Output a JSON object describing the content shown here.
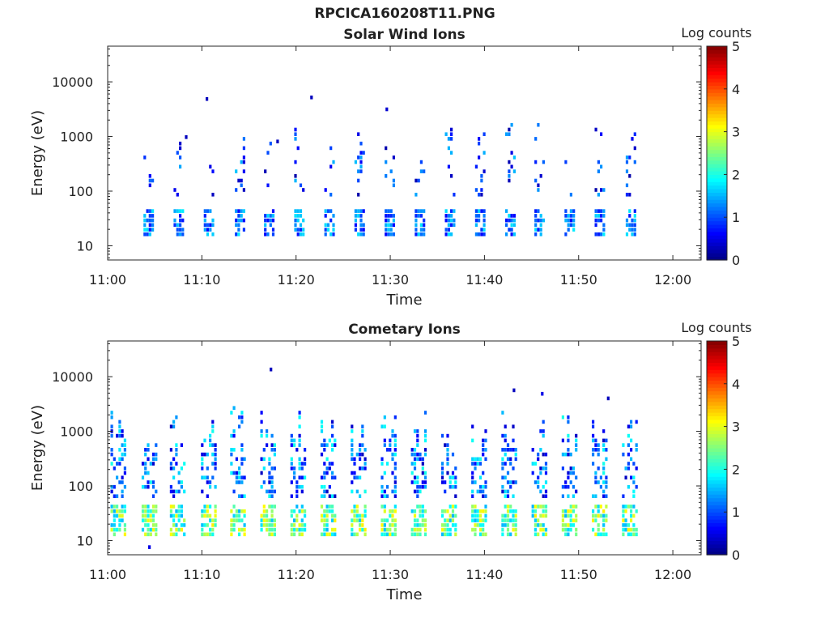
{
  "figure": {
    "title": "RPCICA160208T11.PNG"
  },
  "chart_data": [
    {
      "type": "heatmap",
      "title": "Solar Wind Ions",
      "xlabel": "Time",
      "ylabel": "Energy (eV)",
      "x_ticks": [
        "11:00",
        "11:10",
        "11:20",
        "11:30",
        "11:40",
        "11:50",
        "12:00"
      ],
      "y_ticks": [
        "10",
        "100",
        "1000",
        "10000"
      ],
      "y_scale": "log",
      "ylim": [
        5.5,
        45000
      ],
      "xlim_minutes": [
        0,
        63
      ],
      "colorbar": {
        "label": "Log counts",
        "min": 0,
        "max": 5,
        "ticks": [
          "0",
          "1",
          "2",
          "3",
          "4",
          "5"
        ]
      },
      "scan_start_minutes": [
        3.8,
        7.0,
        10.2,
        13.5,
        16.6,
        19.8,
        23.0,
        26.2,
        29.4,
        32.6,
        35.8,
        39.0,
        42.2,
        45.3,
        48.5,
        51.7,
        55.0
      ],
      "scan_duration_minutes": 1.1,
      "low_band_energy_eV": [
        15,
        40
      ],
      "low_band_log_counts": [
        0.6,
        1.8
      ],
      "high_band_energy_eV": [
        80,
        2000
      ],
      "high_band_log_counts": [
        0.2,
        1.6
      ],
      "sparse_points": [
        {
          "t": 10.4,
          "e": 4500,
          "c": 0.3
        },
        {
          "t": 21.5,
          "e": 4800,
          "c": 0.3
        },
        {
          "t": 29.5,
          "e": 2900,
          "c": 0.4
        },
        {
          "t": 8.2,
          "e": 900,
          "c": 0.3
        },
        {
          "t": 17.9,
          "e": 750,
          "c": 0.3
        }
      ]
    },
    {
      "type": "heatmap",
      "title": "Cometary Ions",
      "xlabel": "Time",
      "ylabel": "Energy (eV)",
      "x_ticks": [
        "11:00",
        "11:10",
        "11:20",
        "11:30",
        "11:40",
        "11:50",
        "12:00"
      ],
      "y_ticks": [
        "10",
        "100",
        "1000",
        "10000"
      ],
      "y_scale": "log",
      "ylim": [
        5.5,
        45000
      ],
      "xlim_minutes": [
        0,
        63
      ],
      "colorbar": {
        "label": "Log counts",
        "min": 0,
        "max": 5,
        "ticks": [
          "0",
          "1",
          "2",
          "3",
          "4",
          "5"
        ]
      },
      "scan_start_minutes": [
        0.3,
        3.6,
        6.6,
        9.9,
        13.0,
        16.2,
        19.4,
        22.6,
        25.8,
        29.0,
        32.2,
        35.4,
        38.6,
        41.8,
        45.0,
        48.2,
        51.4,
        54.6
      ],
      "scan_duration_minutes": 1.6,
      "low_band_energy_eV": [
        12,
        45
      ],
      "low_band_log_counts": [
        1.5,
        3.2
      ],
      "high_band_energy_eV": [
        60,
        3000
      ],
      "high_band_log_counts": [
        0.3,
        2.0
      ],
      "sparse_points": [
        {
          "t": 17.2,
          "e": 12500,
          "c": 0.3
        },
        {
          "t": 43.0,
          "e": 5200,
          "c": 0.3
        },
        {
          "t": 53.0,
          "e": 3700,
          "c": 0.3
        },
        {
          "t": 46.0,
          "e": 4500,
          "c": 0.5
        },
        {
          "t": 4.3,
          "e": 7,
          "c": 0.5
        }
      ]
    }
  ]
}
